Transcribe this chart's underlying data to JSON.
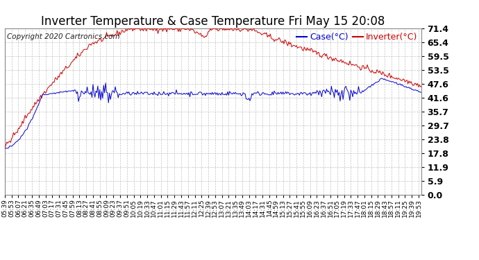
{
  "title": "Inverter Temperature & Case Temperature Fri May 15 20:08",
  "copyright": "Copyright 2020 Cartronics.com",
  "legend_case": "Case(°C)",
  "legend_inverter": "Inverter(°C)",
  "yticks": [
    0.0,
    5.9,
    11.9,
    17.8,
    23.8,
    29.7,
    35.7,
    41.6,
    47.6,
    53.5,
    59.5,
    65.4,
    71.4
  ],
  "ylim": [
    0.0,
    71.4
  ],
  "background_color": "#ffffff",
  "grid_color": "#aaaaaa",
  "inverter_color": "#cc0000",
  "case_color": "#0000cc",
  "title_fontsize": 12,
  "copyright_fontsize": 7.5,
  "tick_fontsize": 6.5,
  "ytick_fontsize": 9,
  "legend_fontsize": 9
}
